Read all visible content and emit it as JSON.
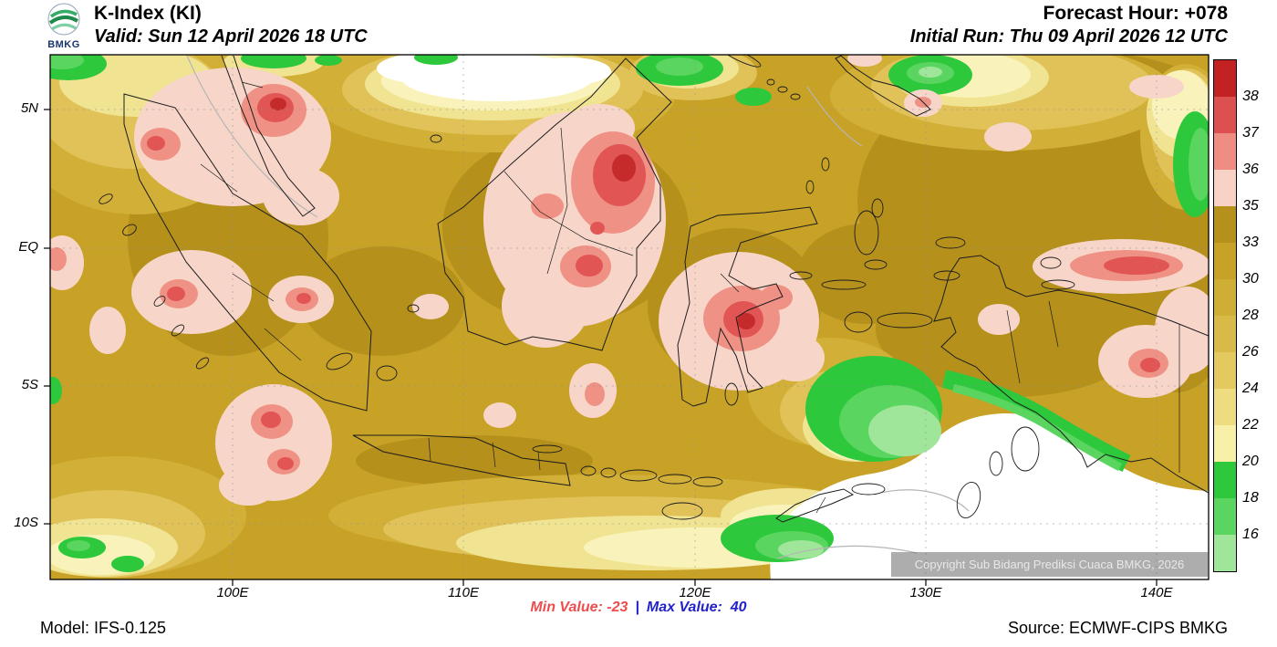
{
  "header": {
    "logo": "BMKG",
    "title": "K-Index (KI)",
    "valid_line": "Valid: Sun 12 April 2026 18 UTC",
    "forecast_hour_line": "Forecast Hour: +078",
    "initial_run_line": "Initial Run: Thu 09 April 2026 12 UTC"
  },
  "map": {
    "copyright": "Copyright Sub Bidang Prediksi Cuaca BMKG, 2026"
  },
  "footer": {
    "model": "Model: IFS-0.125",
    "min_label": "Min Value: -23",
    "separator": "|",
    "max_label": "Max Value:  40",
    "source": "Source: ECMWF-CIPS BMKG",
    "min_color": "#ee4d4d",
    "max_color": "#2222cc"
  },
  "chart_data": {
    "type": "heatmap",
    "title": "K-Index (KI)",
    "valid_time": "Sun 12 April 2026 18 UTC",
    "forecast_hour": "+078",
    "initial_run": "Thu 09 April 2026 12 UTC",
    "model": "IFS-0.125",
    "source": "ECMWF-CIPS BMKG",
    "min_value": -23,
    "max_value": 40,
    "region": {
      "lon_min_e": 92,
      "lon_max_e": 142,
      "lat_min": -12,
      "lat_max": 7
    },
    "x_ticks": [
      "100E",
      "110E",
      "120E",
      "130E",
      "140E"
    ],
    "y_ticks": [
      "5N",
      "EQ",
      "5S",
      "10S"
    ],
    "grid": "dashed graticule every 5 deg lat / 10 deg lon",
    "legend_position": "right vertical colorbar",
    "colorbar": {
      "tick_labels": [
        "38",
        "37",
        "36",
        "35",
        "33",
        "30",
        "28",
        "26",
        "24",
        "22",
        "20",
        "18",
        "16"
      ],
      "colors_top_to_bottom": [
        "#c22222",
        "#dd5050",
        "#ef8d83",
        "#f8d2c5",
        "#b5911c",
        "#c7a227",
        "#cfae35",
        "#d9ba48",
        "#e3c95f",
        "#eedd80",
        "#f7f0a6",
        "#2ec83c",
        "#5ad55f",
        "#a0e69a"
      ]
    },
    "field_summary": {
      "background_band": "K-index mostly 28-35 (dark gold) across Indonesia",
      "maxima_band": "35 to 38+ (pink/red cores)",
      "maxima_regions": [
        "North Sumatra",
        "West-central Sumatra coast",
        "South Sumatra / Bengkulu",
        "Central and East Kalimantan",
        "Central Sulawesi",
        "North Papua coast band near 3S 133-141E",
        "Southeast Papua"
      ],
      "minima_band": "below 20 (green) to below 16 / off-scale (white)",
      "minima_regions": [
        "South China Sea north of Borneo (white)",
        "Arafura and Timor Sea (large white area)",
        "south coast of Papua (green fringe)",
        "scattered green along northern map edge"
      ]
    }
  }
}
